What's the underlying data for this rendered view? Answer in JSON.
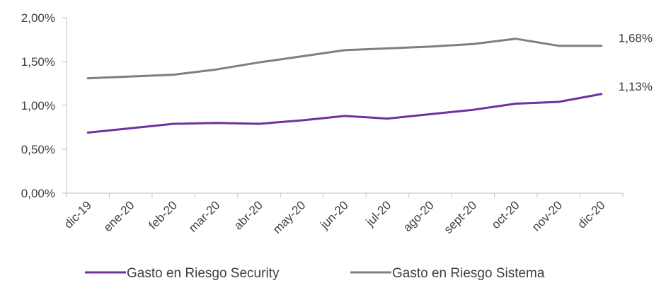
{
  "chart_data": {
    "type": "line",
    "categories": [
      "dic-19",
      "ene-20",
      "feb-20",
      "mar-20",
      "abr-20",
      "may-20",
      "jun-20",
      "jul-20",
      "ago-20",
      "sept-20",
      "oct-20",
      "nov-20",
      "dic-20"
    ],
    "y_ticks": [
      "0,00%",
      "0,50%",
      "1,00%",
      "1,50%",
      "2,00%"
    ],
    "ylim": [
      0,
      2.0
    ],
    "grid": false,
    "legend_position": "bottom",
    "series": [
      {
        "name": "Gasto en Riesgo Security",
        "color": "#7030A0",
        "values": [
          0.69,
          0.74,
          0.79,
          0.8,
          0.79,
          0.83,
          0.88,
          0.85,
          0.9,
          0.95,
          1.02,
          1.04,
          1.13
        ],
        "end_label": "1,13%"
      },
      {
        "name": "Gasto en Riesgo Sistema",
        "color": "#7F7F7F",
        "values": [
          1.31,
          1.33,
          1.35,
          1.41,
          1.49,
          1.56,
          1.63,
          1.65,
          1.67,
          1.7,
          1.76,
          1.68,
          1.68
        ],
        "end_label": "1,68%"
      }
    ]
  }
}
